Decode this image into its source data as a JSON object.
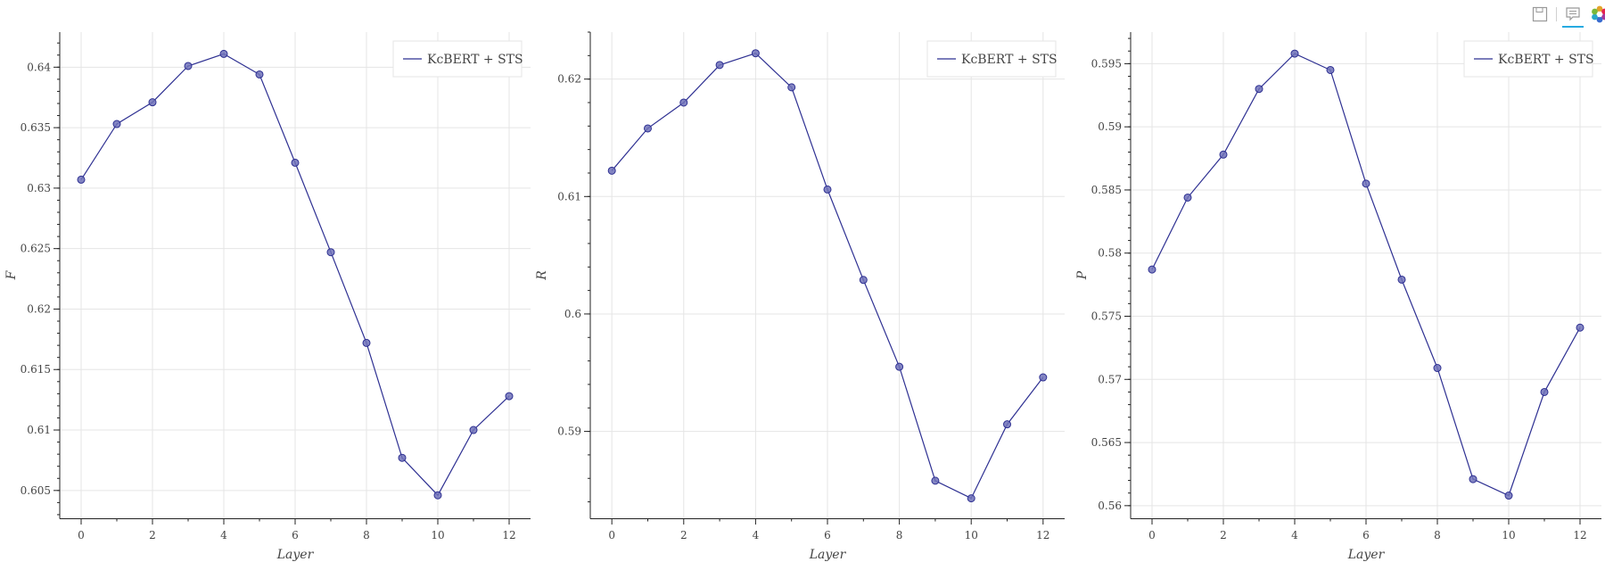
{
  "toolbar": {
    "icons": [
      "save-icon",
      "hover-tool-icon",
      "bokeh-logo-icon"
    ]
  },
  "colors": {
    "line": "#2e3092",
    "marker_fill": "#6f71b8",
    "grid": "#e5e5e5",
    "axis": "#222222",
    "text": "#444444"
  },
  "chart_data": [
    {
      "type": "line",
      "xlabel": "Layer",
      "ylabel": "F",
      "legend": "top-right",
      "grid": true,
      "xlim": [
        -0.6,
        12.6
      ],
      "ylim": [
        0.6027,
        0.6429
      ],
      "xticks": [
        "0",
        "2",
        "4",
        "6",
        "8",
        "10",
        "12"
      ],
      "yticks": [
        "0.605",
        "0.61",
        "0.615",
        "0.62",
        "0.625",
        "0.63",
        "0.635",
        "0.64"
      ],
      "series": [
        {
          "name": "KcBERT + STS",
          "x": [
            0,
            1,
            2,
            3,
            4,
            5,
            6,
            7,
            8,
            9,
            10,
            11,
            12
          ],
          "y": [
            0.6307,
            0.6353,
            0.6371,
            0.6401,
            0.6411,
            0.6394,
            0.6321,
            0.6247,
            0.6172,
            0.6077,
            0.6046,
            0.61,
            0.6128
          ]
        }
      ]
    },
    {
      "type": "line",
      "xlabel": "Layer",
      "ylabel": "R",
      "legend": "top-right",
      "grid": true,
      "xlim": [
        -0.6,
        12.6
      ],
      "ylim": [
        0.5826,
        0.624
      ],
      "xticks": [
        "0",
        "2",
        "4",
        "6",
        "8",
        "10",
        "12"
      ],
      "yticks": [
        "0.59",
        "0.6",
        "0.61",
        "0.62"
      ],
      "series": [
        {
          "name": "KcBERT + STS",
          "x": [
            0,
            1,
            2,
            3,
            4,
            5,
            6,
            7,
            8,
            9,
            10,
            11,
            12
          ],
          "y": [
            0.6122,
            0.6158,
            0.618,
            0.6212,
            0.6222,
            0.6193,
            0.6106,
            0.6029,
            0.5955,
            0.5858,
            0.5843,
            0.5906,
            0.5946
          ]
        }
      ]
    },
    {
      "type": "line",
      "xlabel": "Layer",
      "ylabel": "P",
      "legend": "top-right",
      "grid": true,
      "xlim": [
        -0.6,
        12.6
      ],
      "ylim": [
        0.559,
        0.5975
      ],
      "xticks": [
        "0",
        "2",
        "4",
        "6",
        "8",
        "10",
        "12"
      ],
      "yticks": [
        "0.56",
        "0.565",
        "0.57",
        "0.575",
        "0.58",
        "0.585",
        "0.59",
        "0.595"
      ],
      "series": [
        {
          "name": "KcBERT + STS",
          "x": [
            0,
            1,
            2,
            3,
            4,
            5,
            6,
            7,
            8,
            9,
            10,
            11,
            12
          ],
          "y": [
            0.5787,
            0.5844,
            0.5878,
            0.593,
            0.5958,
            0.5945,
            0.5855,
            0.5779,
            0.5709,
            0.5621,
            0.5608,
            0.569,
            0.5741
          ]
        }
      ]
    }
  ]
}
